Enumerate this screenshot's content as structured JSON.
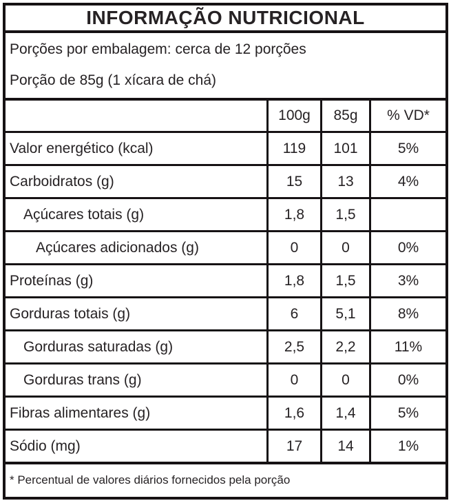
{
  "title": "INFORMAÇÃO NUTRICIONAL",
  "serving_info": {
    "line1": "Porções por embalagem: cerca de 12 porções",
    "line2": "Porção de 85g (1 xícara de chá)"
  },
  "table": {
    "columns": [
      "",
      "100g",
      "85g",
      "% VD*"
    ],
    "rows": [
      {
        "label": "Valor energético (kcal)",
        "indent": 0,
        "per100g": "119",
        "per85g": "101",
        "vd": "5%"
      },
      {
        "label": "Carboidratos (g)",
        "indent": 0,
        "per100g": "15",
        "per85g": "13",
        "vd": "4%"
      },
      {
        "label": "Açúcares totais (g)",
        "indent": 1,
        "per100g": "1,8",
        "per85g": "1,5",
        "vd": ""
      },
      {
        "label": "Açúcares adicionados (g)",
        "indent": 2,
        "per100g": "0",
        "per85g": "0",
        "vd": "0%"
      },
      {
        "label": "Proteínas (g)",
        "indent": 0,
        "per100g": "1,8",
        "per85g": "1,5",
        "vd": "3%"
      },
      {
        "label": "Gorduras totais (g)",
        "indent": 0,
        "per100g": "6",
        "per85g": "5,1",
        "vd": "8%"
      },
      {
        "label": "Gorduras saturadas (g)",
        "indent": 1,
        "per100g": "2,5",
        "per85g": "2,2",
        "vd": "11%"
      },
      {
        "label": "Gorduras trans (g)",
        "indent": 1,
        "per100g": "0",
        "per85g": "0",
        "vd": "0%"
      },
      {
        "label": "Fibras alimentares (g)",
        "indent": 0,
        "per100g": "1,6",
        "per85g": "1,4",
        "vd": "5%"
      },
      {
        "label": "Sódio (mg)",
        "indent": 0,
        "per100g": "17",
        "per85g": "14",
        "vd": "1%"
      }
    ]
  },
  "footnote": "* Percentual de valores diários fornecidos pela porção",
  "colors": {
    "border": "#161214",
    "text": "#262224",
    "background": "#ffffff"
  }
}
